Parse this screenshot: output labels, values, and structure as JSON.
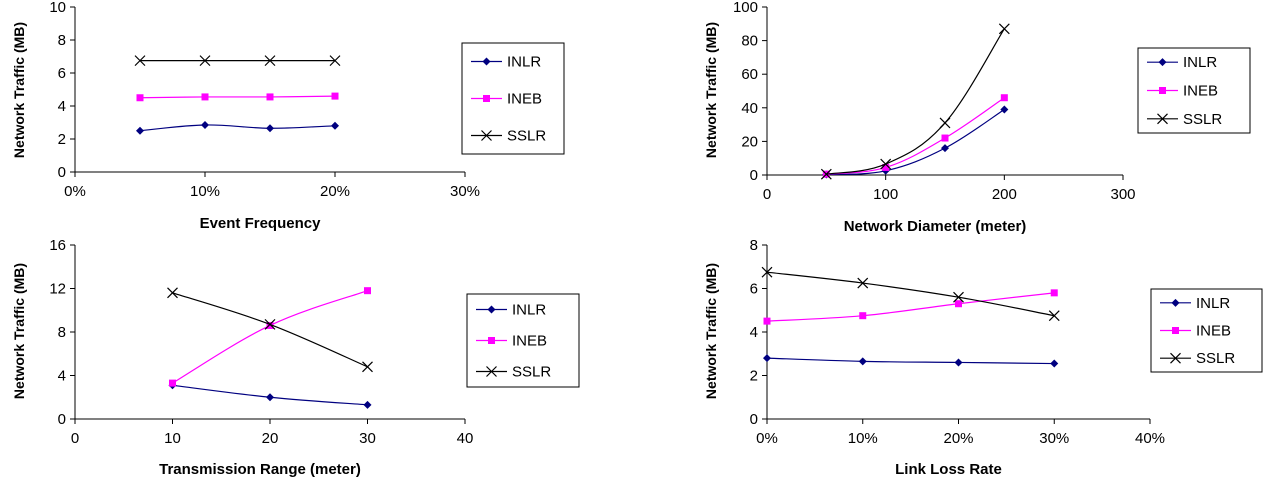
{
  "colors": {
    "INLR": "#000080",
    "INEB": "#FF00FF",
    "SSLR": "#000000"
  },
  "chart_data": [
    {
      "type": "line",
      "xlabel": "Event Frequency",
      "ylabel": "Network Traffic (MB)",
      "xlim": [
        0,
        30
      ],
      "ylim": [
        0,
        10
      ],
      "xticks": [
        0,
        10,
        20,
        30
      ],
      "yticks": [
        0,
        2,
        4,
        6,
        8,
        10
      ],
      "xtick_labels": [
        "0%",
        "10%",
        "20%",
        "30%"
      ],
      "ytick_labels": [
        "0",
        "2",
        "4",
        "6",
        "8",
        "10"
      ],
      "x": [
        5,
        10,
        15,
        20
      ],
      "series": [
        {
          "name": "INLR",
          "values": [
            2.5,
            2.85,
            2.65,
            2.8
          ]
        },
        {
          "name": "INEB",
          "values": [
            4.5,
            4.55,
            4.55,
            4.6
          ]
        },
        {
          "name": "SSLR",
          "values": [
            6.75,
            6.75,
            6.75,
            6.75
          ]
        }
      ],
      "legend": "right"
    },
    {
      "type": "line",
      "xlabel": "Network Diameter (meter)",
      "ylabel": "Network Traffic (MB)",
      "xlim": [
        0,
        300
      ],
      "ylim": [
        0,
        100
      ],
      "xticks": [
        0,
        100,
        200,
        300
      ],
      "yticks": [
        0,
        20,
        40,
        60,
        80,
        100
      ],
      "xtick_labels": [
        "0",
        "100",
        "200",
        "300"
      ],
      "ytick_labels": [
        "0",
        "20",
        "40",
        "60",
        "80",
        "100"
      ],
      "x": [
        50,
        100,
        150,
        200
      ],
      "series": [
        {
          "name": "INLR",
          "values": [
            0.3,
            2.5,
            16,
            39
          ]
        },
        {
          "name": "INEB",
          "values": [
            0.5,
            4.5,
            22,
            46
          ]
        },
        {
          "name": "SSLR",
          "values": [
            0.5,
            6.5,
            31,
            87
          ]
        }
      ],
      "legend": "right"
    },
    {
      "type": "line",
      "xlabel": "Transmission Range (meter)",
      "ylabel": "Network Traffic (MB)",
      "xlim": [
        0,
        40
      ],
      "ylim": [
        0,
        16
      ],
      "xticks": [
        0,
        10,
        20,
        30,
        40
      ],
      "yticks": [
        0,
        4,
        8,
        12,
        16
      ],
      "xtick_labels": [
        "0",
        "10",
        "20",
        "30",
        "40"
      ],
      "ytick_labels": [
        "0",
        "4",
        "8",
        "12",
        "16"
      ],
      "x": [
        10,
        20,
        30
      ],
      "series": [
        {
          "name": "INLR",
          "values": [
            3.1,
            2.0,
            1.3
          ]
        },
        {
          "name": "INEB",
          "values": [
            3.3,
            8.6,
            11.8
          ]
        },
        {
          "name": "SSLR",
          "values": [
            11.6,
            8.7,
            4.8
          ]
        }
      ],
      "legend": "right"
    },
    {
      "type": "line",
      "xlabel": "Link Loss Rate",
      "ylabel": "Network Traffic (MB)",
      "xlim": [
        0,
        40
      ],
      "ylim": [
        0,
        8
      ],
      "xticks": [
        0,
        10,
        20,
        30,
        40
      ],
      "yticks": [
        0,
        2,
        4,
        6,
        8
      ],
      "xtick_labels": [
        "0%",
        "10%",
        "20%",
        "30%",
        "40%"
      ],
      "ytick_labels": [
        "0",
        "2",
        "4",
        "6",
        "8"
      ],
      "x": [
        0,
        10,
        20,
        30
      ],
      "series": [
        {
          "name": "INLR",
          "values": [
            2.8,
            2.65,
            2.6,
            2.55
          ]
        },
        {
          "name": "INEB",
          "values": [
            4.5,
            4.75,
            5.3,
            5.8
          ]
        },
        {
          "name": "SSLR",
          "values": [
            6.75,
            6.25,
            5.6,
            4.75
          ]
        }
      ],
      "legend": "right"
    }
  ]
}
